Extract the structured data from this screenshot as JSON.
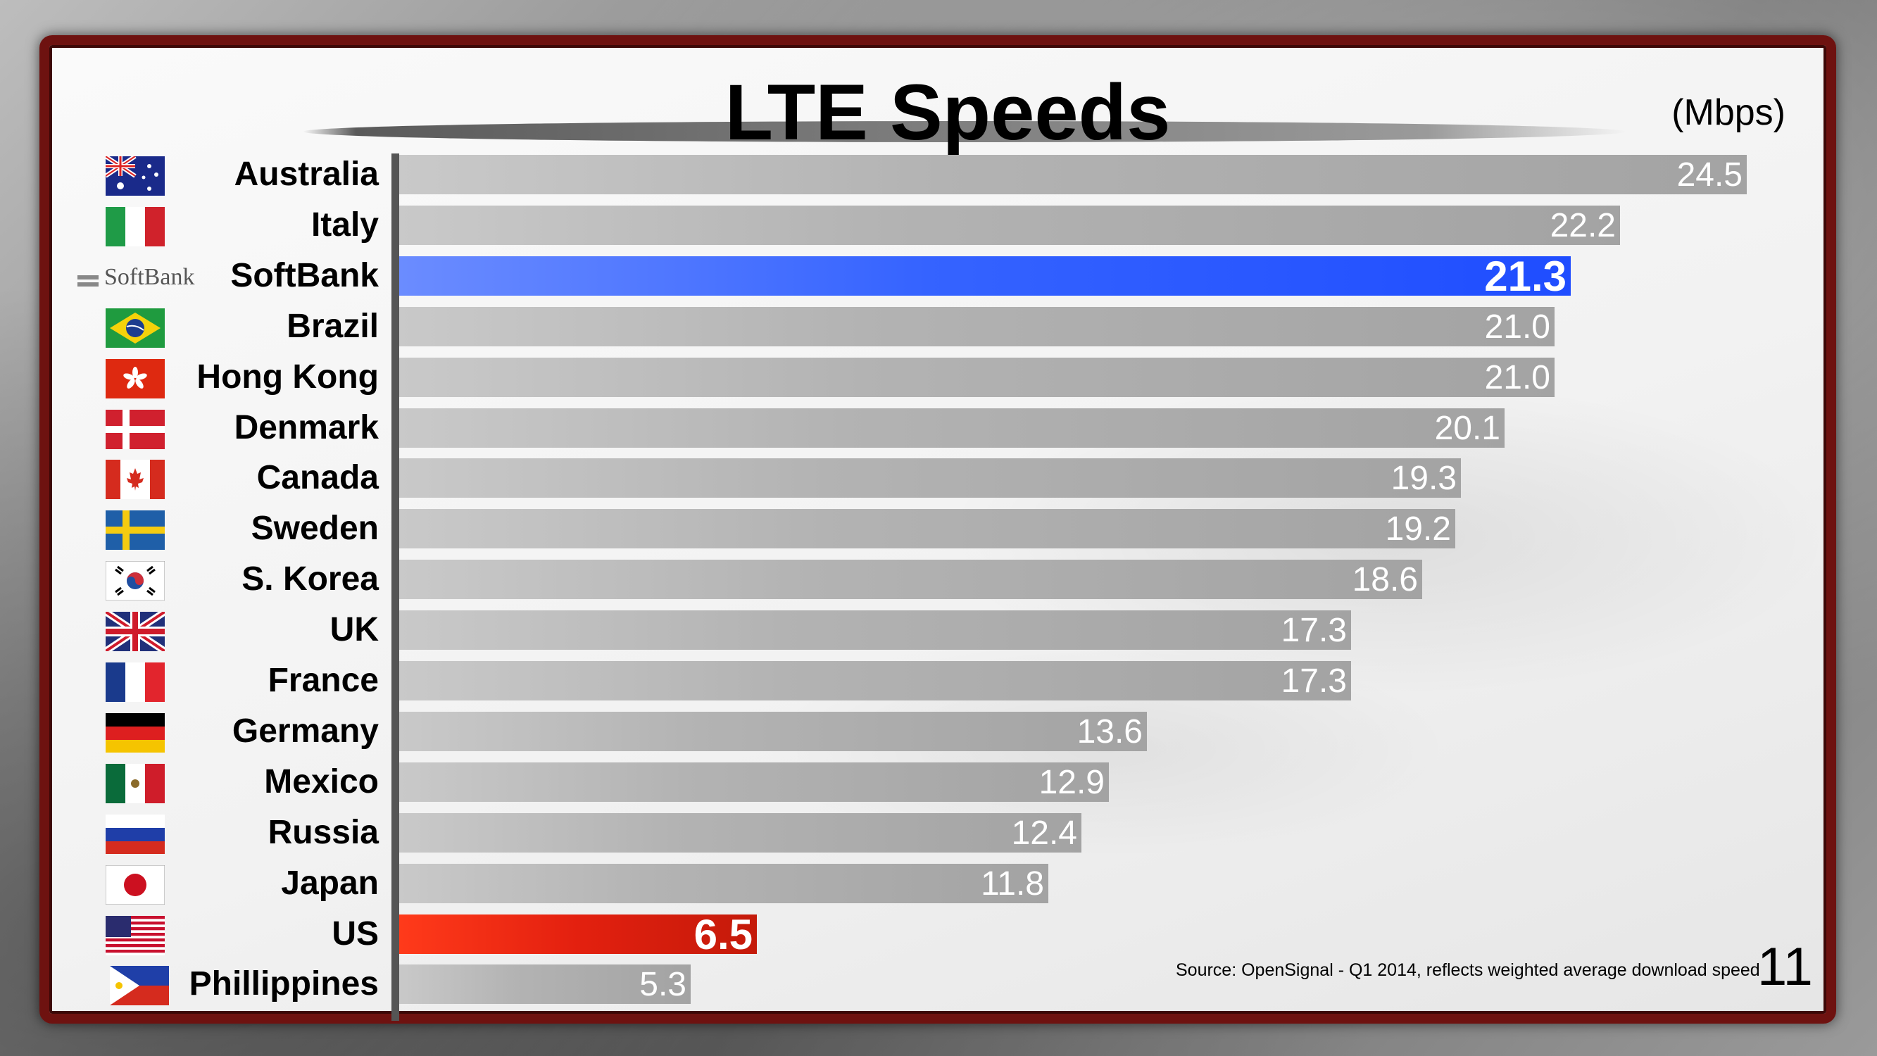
{
  "chart_data": {
    "type": "bar",
    "orientation": "horizontal",
    "title": "LTE Speeds",
    "units_label": "(Mbps)",
    "categories": [
      "Australia",
      "Italy",
      "SoftBank",
      "Brazil",
      "Hong Kong",
      "Denmark",
      "Canada",
      "Sweden",
      "S. Korea",
      "UK",
      "France",
      "Germany",
      "Mexico",
      "Russia",
      "Japan",
      "US",
      "Phillippines"
    ],
    "values": [
      24.5,
      22.2,
      21.3,
      21.0,
      21.0,
      20.1,
      19.3,
      19.2,
      18.6,
      17.3,
      17.3,
      13.6,
      12.9,
      12.4,
      11.8,
      6.5,
      5.3
    ],
    "value_labels": [
      "24.5",
      "22.2",
      "21.3",
      "21.0",
      "21.0",
      "20.1",
      "19.3",
      "19.2",
      "18.6",
      "17.3",
      "17.3",
      "13.6",
      "12.9",
      "12.4",
      "11.8",
      "6.5",
      "5.3"
    ],
    "xlim": [
      0,
      24.5
    ],
    "highlight": {
      "SoftBank": "#1f4dff",
      "US": "#e3200f"
    },
    "default_bar_color": "#a3a3a3",
    "icons": [
      "flag-australia",
      "flag-italy",
      "softbank-logo",
      "flag-brazil",
      "flag-hong-kong",
      "flag-denmark",
      "flag-canada",
      "flag-sweden",
      "flag-south-korea",
      "flag-uk",
      "flag-france",
      "flag-germany",
      "flag-mexico",
      "flag-russia",
      "flag-japan",
      "flag-us",
      "flag-philippines"
    ],
    "softbank_logo_text": "SoftBank",
    "source": "Source: OpenSignal - Q1 2014, reflects weighted average download speed",
    "page_number": "11"
  }
}
